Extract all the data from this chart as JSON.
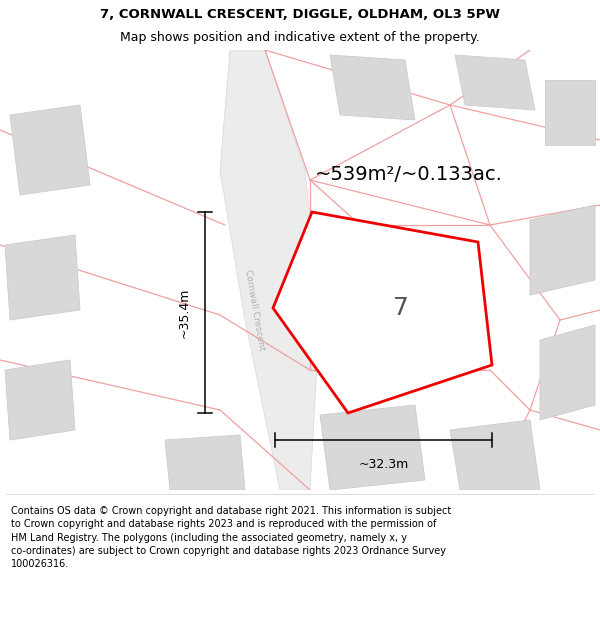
{
  "title_line1": "7, CORNWALL CRESCENT, DIGGLE, OLDHAM, OL3 5PW",
  "title_line2": "Map shows position and indicative extent of the property.",
  "footer_text": "Contains OS data © Crown copyright and database right 2021. This information is subject\nto Crown copyright and database rights 2023 and is reproduced with the permission of\nHM Land Registry. The polygons (including the associated geometry, namely x, y\nco-ordinates) are subject to Crown copyright and database rights 2023 Ordnance Survey\n100026316.",
  "area_text": "~539m²/~0.133ac.",
  "label_number": "7",
  "dim_horizontal": "~32.3m",
  "dim_vertical": "~35.4m",
  "road_label": "Cornwall Crescent",
  "plot_edge_color": "#ee0000",
  "pink_line_color": "#f0a0a0",
  "building_fill": "#d8d8d8",
  "building_edge": "#cccccc",
  "road_fill": "#e8e8e8",
  "text_color": "#000000",
  "road_label_color": "#aaaaaa",
  "title_fontsize": 9.5,
  "subtitle_fontsize": 9.0,
  "area_fontsize": 14,
  "label_fontsize": 18,
  "dim_fontsize": 9,
  "footer_fontsize": 7.0
}
